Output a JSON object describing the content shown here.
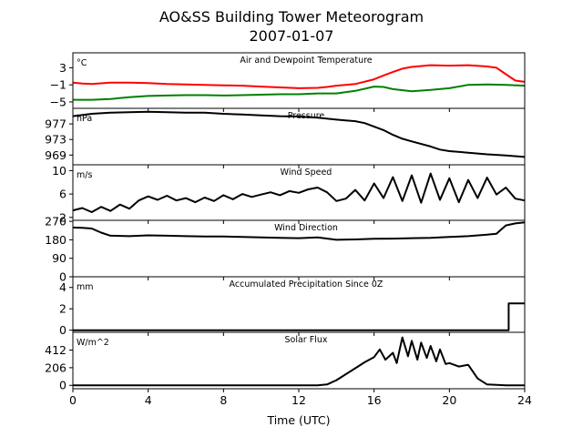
{
  "figure": {
    "title_line1": "AO&SS Building Tower Meteorogram",
    "title_line2": "2007-01-07",
    "xlabel": "Time (UTC)",
    "xticks": [
      0,
      4,
      8,
      12,
      16,
      20,
      24
    ],
    "xlim": [
      0,
      24
    ]
  },
  "chart_data": [
    {
      "type": "line",
      "title": "Air and Dewpoint Temperature",
      "unit": "°C",
      "ylim": [
        -6.5,
        6.5
      ],
      "yticks": [
        3,
        -1,
        -5
      ],
      "ytick_labels": [
        "3",
        "−1",
        "−5"
      ],
      "series": [
        {
          "color": "#ff0000",
          "x": [
            0,
            0.5,
            1,
            2,
            3,
            4,
            5,
            6,
            7,
            8,
            9,
            10,
            11,
            12,
            13,
            13.5,
            14,
            15,
            16,
            16.5,
            17,
            17.5,
            18,
            19,
            20,
            21,
            22,
            22.5,
            23,
            23.5,
            24
          ],
          "y": [
            -0.5,
            -0.7,
            -0.8,
            -0.5,
            -0.5,
            -0.6,
            -0.8,
            -0.9,
            -1.0,
            -1.1,
            -1.2,
            -1.4,
            -1.6,
            -1.8,
            -1.7,
            -1.5,
            -1.2,
            -0.8,
            0.3,
            1.2,
            2.0,
            2.8,
            3.2,
            3.6,
            3.5,
            3.6,
            3.3,
            3.0,
            1.5,
            0.0,
            -0.3
          ]
        },
        {
          "color": "#008000",
          "x": [
            0,
            1,
            2,
            3,
            4,
            5,
            6,
            7,
            8,
            9,
            10,
            11,
            12,
            13,
            14,
            15,
            16,
            16.5,
            17,
            18,
            19,
            20,
            21,
            22,
            23,
            24
          ],
          "y": [
            -4.5,
            -4.5,
            -4.3,
            -3.9,
            -3.6,
            -3.5,
            -3.4,
            -3.4,
            -3.5,
            -3.4,
            -3.3,
            -3.2,
            -3.2,
            -3.0,
            -3.0,
            -2.4,
            -1.4,
            -1.5,
            -2.0,
            -2.5,
            -2.2,
            -1.8,
            -1.0,
            -0.9,
            -1.0,
            -1.2
          ]
        }
      ]
    },
    {
      "type": "line",
      "title": "Pressure",
      "unit": "hPa",
      "ylim": [
        966.5,
        981.0
      ],
      "yticks": [
        977,
        973,
        969
      ],
      "ytick_labels": [
        "977",
        "973",
        "969"
      ],
      "series": [
        {
          "color": "#000000",
          "x": [
            0,
            1,
            2,
            3,
            4,
            5,
            6,
            7,
            8,
            9,
            10,
            11,
            12,
            13,
            14,
            15,
            15.5,
            16,
            16.5,
            17,
            17.5,
            18,
            19,
            19.5,
            20,
            21,
            22,
            23,
            24
          ],
          "y": [
            979.0,
            979.6,
            979.9,
            980.0,
            980.1,
            980.0,
            979.9,
            979.9,
            979.6,
            979.4,
            979.2,
            979.0,
            978.9,
            978.6,
            978.1,
            977.7,
            977.2,
            976.3,
            975.4,
            974.2,
            973.2,
            972.5,
            971.2,
            970.4,
            970.0,
            969.6,
            969.2,
            968.9,
            968.5
          ]
        }
      ]
    },
    {
      "type": "line",
      "title": "Wind Speed",
      "unit": "m/s",
      "ylim": [
        1.5,
        11.0
      ],
      "yticks": [
        10,
        6,
        2
      ],
      "ytick_labels": [
        "10",
        "6",
        "2"
      ],
      "series": [
        {
          "color": "#000000",
          "x": [
            0,
            0.5,
            1,
            1.5,
            2,
            2.5,
            3,
            3.5,
            4,
            4.5,
            5,
            5.5,
            6,
            6.5,
            7,
            7.5,
            8,
            8.5,
            9,
            9.5,
            10,
            10.5,
            11,
            11.5,
            12,
            12.5,
            13,
            13.5,
            14,
            14.5,
            15,
            15.5,
            16,
            16.5,
            17,
            17.5,
            18,
            18.5,
            19,
            19.5,
            20,
            20.5,
            21,
            21.5,
            22,
            22.5,
            23,
            23.5,
            24
          ],
          "y": [
            3.2,
            3.6,
            2.9,
            3.8,
            3.1,
            4.2,
            3.5,
            4.9,
            5.6,
            5.0,
            5.7,
            4.9,
            5.3,
            4.6,
            5.4,
            4.8,
            5.8,
            5.1,
            6.0,
            5.5,
            5.9,
            6.3,
            5.8,
            6.5,
            6.2,
            6.8,
            7.1,
            6.3,
            4.8,
            5.2,
            6.7,
            4.9,
            7.8,
            5.3,
            8.9,
            4.8,
            9.2,
            4.5,
            9.5,
            5.0,
            8.7,
            4.6,
            8.4,
            5.3,
            8.8,
            5.9,
            7.1,
            5.2,
            4.9
          ]
        }
      ]
    },
    {
      "type": "line",
      "title": "Wind Direction",
      "unit": "",
      "ylim": [
        0,
        275
      ],
      "yticks": [
        270,
        180,
        90,
        0
      ],
      "ytick_labels": [
        "270",
        "180",
        "90",
        "0"
      ],
      "series": [
        {
          "color": "#000000",
          "x": [
            0,
            0.5,
            1,
            1.5,
            2,
            3,
            4,
            5,
            6,
            7,
            8,
            9,
            10,
            11,
            12,
            13,
            14,
            15,
            16,
            17,
            18,
            19,
            20,
            21,
            22,
            22.5,
            23,
            23.5,
            24
          ],
          "y": [
            240,
            238,
            235,
            215,
            200,
            198,
            202,
            200,
            198,
            196,
            196,
            194,
            192,
            190,
            188,
            192,
            180,
            182,
            185,
            186,
            188,
            190,
            194,
            198,
            205,
            210,
            250,
            260,
            265
          ]
        }
      ]
    },
    {
      "type": "line",
      "title": "Accumulated Precipitation Since 0Z",
      "unit": "mm",
      "ylim": [
        -0.2,
        5.0
      ],
      "yticks": [
        4,
        2,
        0
      ],
      "ytick_labels": [
        "4",
        "2",
        "0"
      ],
      "series": [
        {
          "color": "#000000",
          "x": [
            0,
            23.15,
            23.15,
            24
          ],
          "y": [
            0,
            0,
            2.5,
            2.5
          ]
        }
      ]
    },
    {
      "type": "line",
      "title": "Solar Flux",
      "unit": "W/m^2",
      "ylim": [
        -40,
        620
      ],
      "yticks": [
        412,
        206,
        0
      ],
      "ytick_labels": [
        "412",
        "206",
        "0"
      ],
      "series": [
        {
          "color": "#000000",
          "x": [
            0,
            13,
            13.5,
            14,
            14.5,
            15,
            15.5,
            16,
            16.3,
            16.6,
            17,
            17.2,
            17.5,
            17.8,
            18,
            18.3,
            18.5,
            18.8,
            19,
            19.3,
            19.5,
            19.8,
            20,
            20.5,
            21,
            21.5,
            22,
            23,
            24
          ],
          "y": [
            0,
            0,
            10,
            60,
            130,
            200,
            270,
            330,
            420,
            300,
            380,
            260,
            560,
            340,
            520,
            300,
            500,
            320,
            460,
            280,
            420,
            250,
            260,
            220,
            240,
            80,
            10,
            0,
            0
          ]
        }
      ]
    }
  ]
}
